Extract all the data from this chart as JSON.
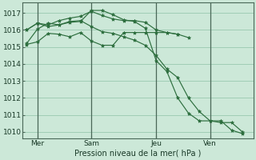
{
  "bg_color": "#cce8d8",
  "grid_color": "#99c8b0",
  "line_color": "#2d6e3e",
  "marker_color": "#2d6e3e",
  "ylabel_ticks": [
    1010,
    1011,
    1012,
    1013,
    1014,
    1015,
    1016,
    1017
  ],
  "ylim": [
    1009.6,
    1017.6
  ],
  "xlabel": "Pression niveau de la mer( hPa )",
  "xtick_labels": [
    "Mer",
    "Sam",
    "Jeu",
    "Ven"
  ],
  "xtick_positions": [
    0.5,
    3.0,
    6.0,
    8.5
  ],
  "vline_positions": [
    0.5,
    3.0,
    6.0,
    8.5
  ],
  "xlim": [
    -0.2,
    10.5
  ],
  "series": [
    {
      "x": [
        0.0,
        0.5,
        1.0,
        1.5,
        2.0,
        2.5,
        3.0,
        3.5,
        4.0,
        4.5,
        5.0,
        5.5,
        6.0,
        6.5,
        7.0,
        7.5,
        8.0,
        8.5,
        9.0,
        9.5,
        10.0
      ],
      "y": [
        1015.2,
        1016.05,
        1016.4,
        1016.3,
        1016.5,
        1016.55,
        1016.2,
        1015.9,
        1015.8,
        1015.6,
        1015.4,
        1015.1,
        1014.5,
        1013.7,
        1013.2,
        1012.0,
        1011.2,
        1010.65,
        1010.65,
        1010.1,
        1009.9
      ]
    },
    {
      "x": [
        0.0,
        0.5,
        1.0,
        1.5,
        2.0,
        2.5,
        3.0,
        3.5,
        4.0,
        4.5,
        5.0,
        5.5,
        6.0,
        6.5,
        7.0,
        7.5
      ],
      "y": [
        1016.0,
        1016.4,
        1016.3,
        1016.55,
        1016.7,
        1016.8,
        1017.1,
        1016.85,
        1016.65,
        1016.55,
        1016.55,
        1016.45,
        1016.0,
        1015.85,
        1015.75,
        1015.55
      ]
    },
    {
      "x": [
        0.0,
        0.5,
        1.0,
        1.5,
        2.0,
        2.5,
        3.0,
        3.5,
        4.0,
        4.5,
        5.0,
        5.5,
        6.0,
        6.5,
        7.0,
        7.5,
        8.0,
        8.5,
        9.0,
        9.5,
        10.0
      ],
      "y": [
        1016.0,
        1016.4,
        1016.2,
        1016.3,
        1016.45,
        1016.5,
        1017.15,
        1017.15,
        1016.9,
        1016.6,
        1016.5,
        1016.1,
        1014.2,
        1013.55,
        1012.0,
        1011.1,
        1010.65,
        1010.65,
        1010.55,
        1010.55,
        1010.0
      ]
    },
    {
      "x": [
        0.0,
        0.5,
        1.0,
        1.5,
        2.0,
        2.5,
        3.0,
        3.5,
        4.0,
        4.5,
        5.0,
        5.5,
        6.0,
        6.5,
        7.0
      ],
      "y": [
        1015.15,
        1015.3,
        1015.8,
        1015.75,
        1015.6,
        1015.85,
        1015.35,
        1015.1,
        1015.1,
        1015.85,
        1015.85,
        1015.85,
        1015.85,
        1015.85,
        1015.75
      ]
    }
  ]
}
